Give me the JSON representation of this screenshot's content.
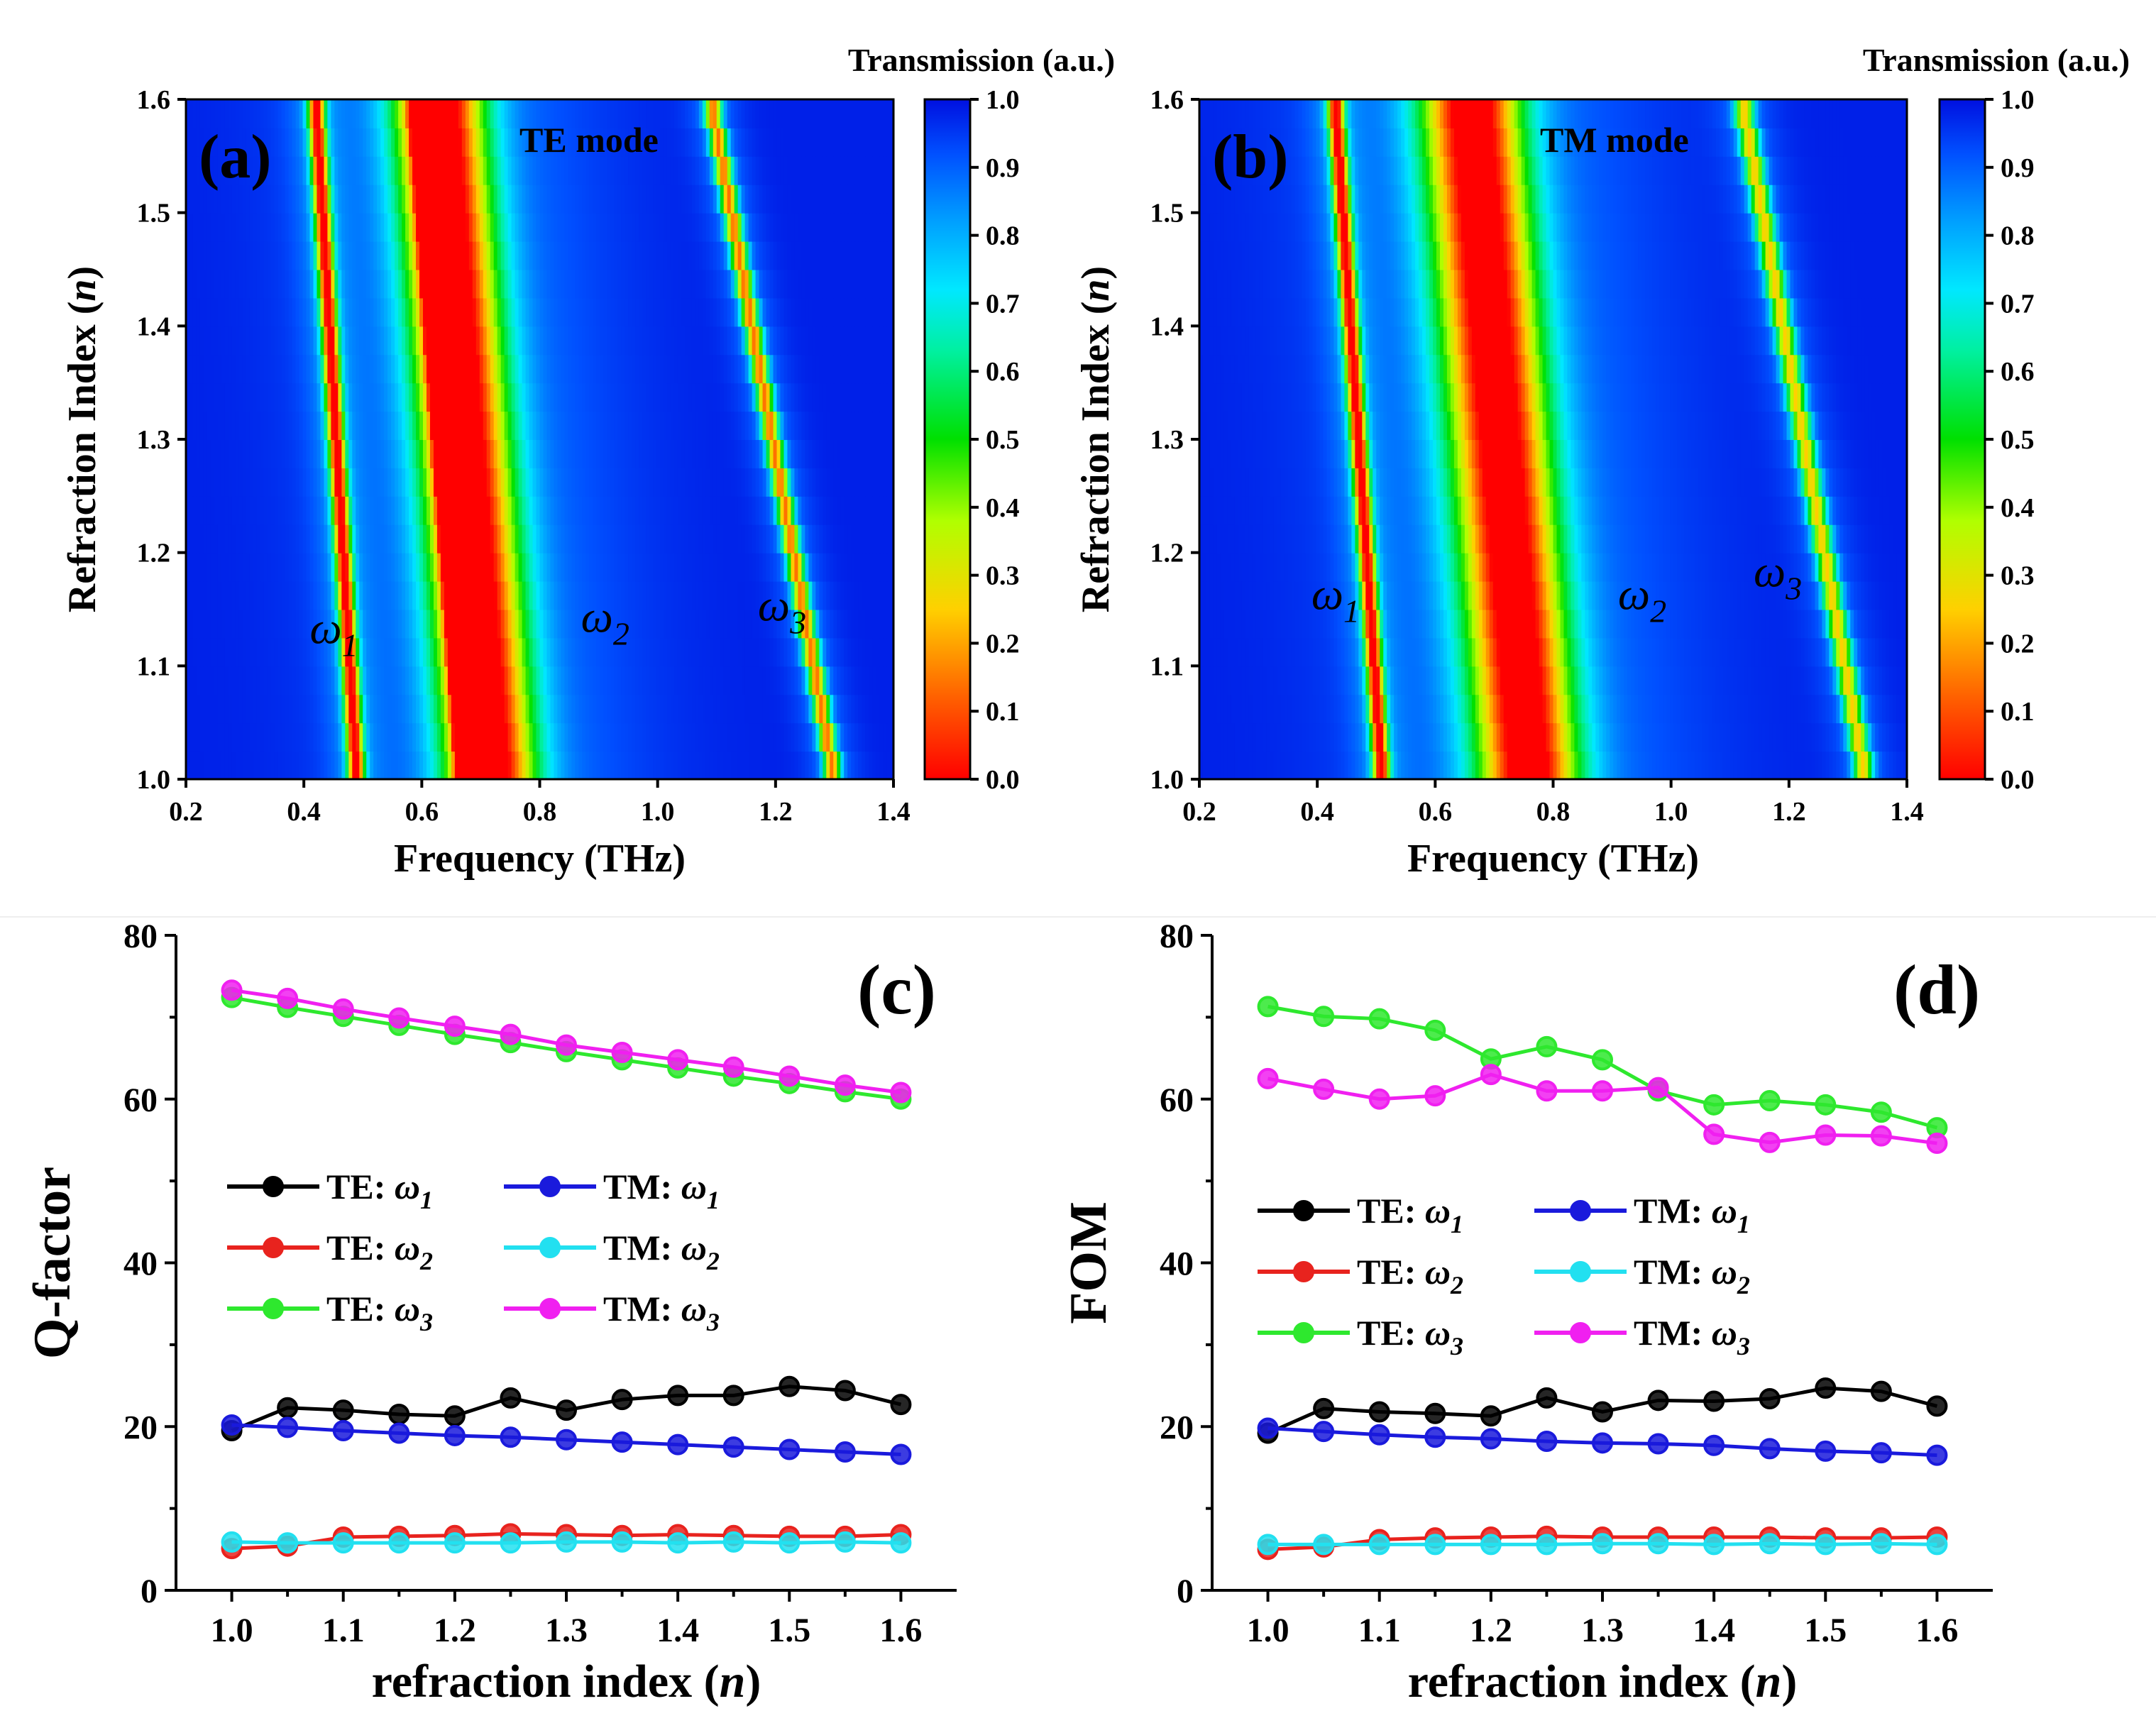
{
  "chart_data": [
    {
      "type": "heatmap",
      "panel": "(a)",
      "mode_label": "TE mode",
      "xlabel": "Frequency (THz)",
      "ylabel_prefix": "Refraction Index (",
      "ylabel_var": "n",
      "ylabel_suffix": ")",
      "xlim": [
        0.2,
        1.4
      ],
      "ylim": [
        1.0,
        1.6
      ],
      "xticks": [
        "0.2",
        "0.4",
        "0.6",
        "0.8",
        "1.0",
        "1.2",
        "1.4"
      ],
      "yticks": [
        "1.0",
        "1.1",
        "1.2",
        "1.3",
        "1.4",
        "1.5",
        "1.6"
      ],
      "colorbar_title": "Transmission (a.u.)",
      "colorbar_ticks": [
        "0.0",
        "0.1",
        "0.2",
        "0.3",
        "0.4",
        "0.5",
        "0.6",
        "0.7",
        "0.8",
        "0.9",
        "1.0"
      ],
      "annotations": [
        {
          "label": "ω",
          "sub": "1",
          "f": 0.41,
          "n": 1.12
        },
        {
          "label": "ω",
          "sub": "2",
          "f": 0.87,
          "n": 1.13
        },
        {
          "label": "ω",
          "sub": "3",
          "f": 1.17,
          "n": 1.14
        }
      ],
      "bands": [
        {
          "f_at_1_0": 0.49,
          "f_at_1_6": 0.42,
          "width": 0.014,
          "depth": 0.9
        },
        {
          "f_at_1_0": 0.67,
          "f_at_1_6": 0.59,
          "width": 0.012,
          "depth": 0.7
        },
        {
          "f_at_1_0": 0.72,
          "f_at_1_6": 0.63,
          "width": 0.075,
          "depth": 1.0
        },
        {
          "f_at_1_0": 1.3,
          "f_at_1_6": 1.09,
          "width": 0.014,
          "depth": 0.75
        }
      ]
    },
    {
      "type": "heatmap",
      "panel": "(b)",
      "mode_label": "TM mode",
      "xlabel": "Frequency (THz)",
      "ylabel_prefix": "Refraction Index (",
      "ylabel_var": "n",
      "ylabel_suffix": ")",
      "xlim": [
        0.2,
        1.4
      ],
      "ylim": [
        1.0,
        1.6
      ],
      "xticks": [
        "0.2",
        "0.4",
        "0.6",
        "0.8",
        "1.0",
        "1.2",
        "1.4"
      ],
      "yticks": [
        "1.0",
        "1.1",
        "1.2",
        "1.3",
        "1.4",
        "1.5",
        "1.6"
      ],
      "colorbar_title": "Transmission (a.u.)",
      "colorbar_ticks": [
        "0.0",
        "0.1",
        "0.2",
        "0.3",
        "0.4",
        "0.5",
        "0.6",
        "0.7",
        "0.8",
        "0.9",
        "1.0"
      ],
      "annotations": [
        {
          "label": "ω",
          "sub": "1",
          "f": 0.39,
          "n": 1.15
        },
        {
          "label": "ω",
          "sub": "2",
          "f": 0.91,
          "n": 1.15
        },
        {
          "label": "ω",
          "sub": "3",
          "f": 1.14,
          "n": 1.17
        }
      ],
      "bands": [
        {
          "f_at_1_0": 0.51,
          "f_at_1_6": 0.43,
          "width": 0.014,
          "depth": 0.9
        },
        {
          "f_at_1_0": 0.76,
          "f_at_1_6": 0.66,
          "width": 0.085,
          "depth": 1.0
        },
        {
          "f_at_1_0": 1.33,
          "f_at_1_6": 1.12,
          "width": 0.016,
          "depth": 0.65
        }
      ]
    },
    {
      "type": "line",
      "panel": "(c)",
      "xlabel_prefix": "refraction index (",
      "xlabel_var": "n",
      "xlabel_suffix": ")",
      "ylabel": "Q-factor",
      "xlim": [
        0.95,
        1.65
      ],
      "ylim": [
        0,
        80
      ],
      "xticks": [
        "1.0",
        "1.1",
        "1.2",
        "1.3",
        "1.4",
        "1.5",
        "1.6"
      ],
      "yticks": [
        "0",
        "20",
        "40",
        "60",
        "80"
      ],
      "x": [
        1.0,
        1.05,
        1.1,
        1.15,
        1.2,
        1.25,
        1.3,
        1.35,
        1.4,
        1.45,
        1.5,
        1.55,
        1.6
      ],
      "series": [
        {
          "name": "TE:",
          "omega": "ω",
          "sub": "1",
          "color": "#000000",
          "values": [
            19.5,
            22.3,
            22.0,
            21.5,
            21.3,
            23.5,
            22.0,
            23.3,
            23.8,
            23.8,
            24.9,
            24.4,
            22.7
          ]
        },
        {
          "name": "TM:",
          "omega": "ω",
          "sub": "1",
          "color": "#1a1adc",
          "values": [
            20.2,
            19.9,
            19.5,
            19.2,
            18.9,
            18.7,
            18.4,
            18.1,
            17.8,
            17.5,
            17.2,
            16.9,
            16.6
          ]
        },
        {
          "name": "TE:",
          "omega": "ω",
          "sub": "2",
          "color": "#e8231e",
          "values": [
            5.1,
            5.4,
            6.5,
            6.6,
            6.7,
            6.9,
            6.8,
            6.7,
            6.8,
            6.7,
            6.6,
            6.6,
            6.8
          ]
        },
        {
          "name": "TM:",
          "omega": "ω",
          "sub": "2",
          "color": "#22e0f0",
          "values": [
            5.9,
            5.8,
            5.8,
            5.8,
            5.8,
            5.8,
            5.9,
            5.9,
            5.8,
            5.9,
            5.8,
            5.9,
            5.8
          ]
        },
        {
          "name": "TE:",
          "omega": "ω",
          "sub": "3",
          "color": "#2ee82e",
          "values": [
            72.4,
            71.2,
            70.1,
            69.0,
            67.9,
            66.9,
            65.8,
            64.8,
            63.8,
            62.8,
            61.9,
            60.9,
            60.0
          ]
        },
        {
          "name": "TM:",
          "omega": "ω",
          "sub": "3",
          "color": "#f020f0",
          "values": [
            73.3,
            72.3,
            71.0,
            69.9,
            68.9,
            67.9,
            66.6,
            65.7,
            64.8,
            63.9,
            62.8,
            61.7,
            60.8
          ]
        }
      ]
    },
    {
      "type": "line",
      "panel": "(d)",
      "xlabel_prefix": "refraction index (",
      "xlabel_var": "n",
      "xlabel_suffix": ")",
      "ylabel": "FOM",
      "xlim": [
        0.95,
        1.65
      ],
      "ylim": [
        0,
        80
      ],
      "xticks": [
        "1.0",
        "1.1",
        "1.2",
        "1.3",
        "1.4",
        "1.5",
        "1.6"
      ],
      "yticks": [
        "0",
        "20",
        "40",
        "60",
        "80"
      ],
      "x": [
        1.0,
        1.05,
        1.1,
        1.15,
        1.2,
        1.25,
        1.3,
        1.35,
        1.4,
        1.45,
        1.5,
        1.55,
        1.6
      ],
      "series": [
        {
          "name": "TE:",
          "omega": "ω",
          "sub": "1",
          "color": "#000000",
          "values": [
            19.2,
            22.2,
            21.8,
            21.6,
            21.3,
            23.5,
            21.8,
            23.2,
            23.1,
            23.4,
            24.7,
            24.3,
            22.5
          ]
        },
        {
          "name": "TM:",
          "omega": "ω",
          "sub": "1",
          "color": "#1a1adc",
          "values": [
            19.8,
            19.4,
            19.0,
            18.7,
            18.5,
            18.2,
            18.0,
            17.9,
            17.7,
            17.3,
            17.0,
            16.8,
            16.5
          ]
        },
        {
          "name": "TE:",
          "omega": "ω",
          "sub": "2",
          "color": "#e8231e",
          "values": [
            5.0,
            5.3,
            6.2,
            6.4,
            6.5,
            6.6,
            6.5,
            6.5,
            6.5,
            6.5,
            6.4,
            6.4,
            6.5
          ]
        },
        {
          "name": "TM:",
          "omega": "ω",
          "sub": "2",
          "color": "#22e0f0",
          "values": [
            5.6,
            5.6,
            5.6,
            5.6,
            5.6,
            5.6,
            5.7,
            5.7,
            5.6,
            5.7,
            5.6,
            5.7,
            5.6
          ]
        },
        {
          "name": "TE:",
          "omega": "ω",
          "sub": "3",
          "color": "#2ee82e",
          "values": [
            71.3,
            70.1,
            69.8,
            68.4,
            64.9,
            66.4,
            64.8,
            61.0,
            59.3,
            59.8,
            59.3,
            58.4,
            56.5
          ]
        },
        {
          "name": "TM:",
          "omega": "ω",
          "sub": "3",
          "color": "#f020f0",
          "values": [
            62.5,
            61.2,
            60.0,
            60.4,
            63.0,
            61.0,
            61.0,
            61.4,
            55.7,
            54.7,
            55.6,
            55.5,
            54.6
          ]
        }
      ]
    }
  ]
}
